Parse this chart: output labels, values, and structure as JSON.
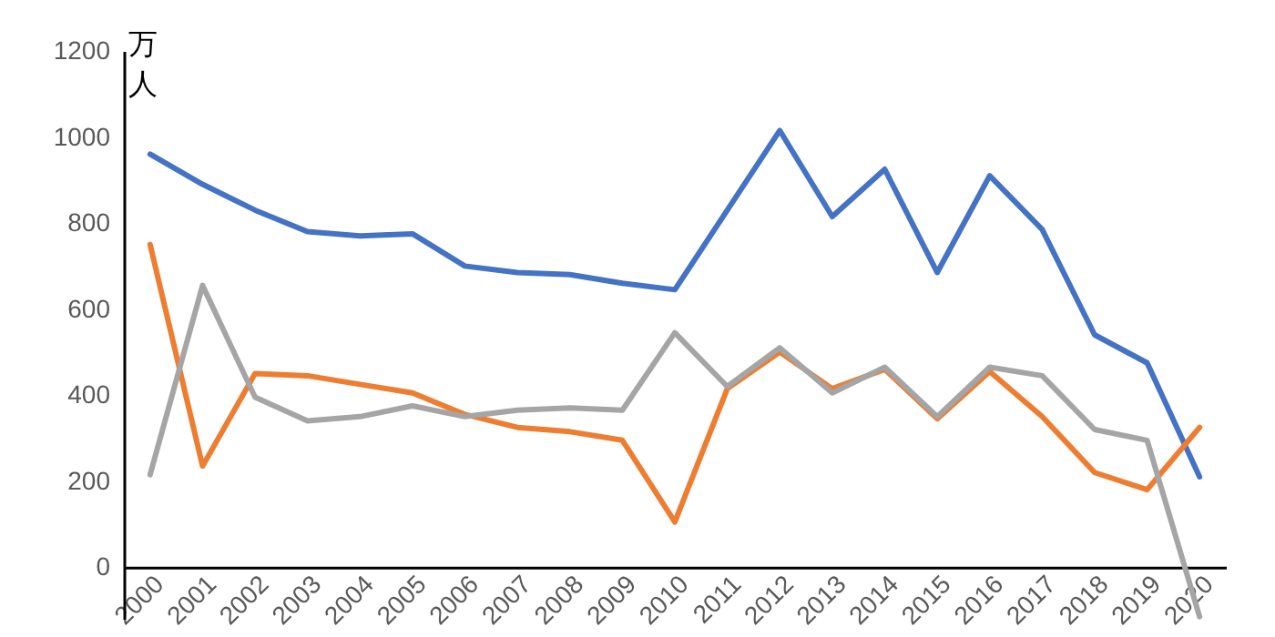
{
  "chart_data": {
    "type": "line",
    "ylabel": "万人",
    "categories": [
      "2000",
      "2001",
      "2002",
      "2003",
      "2004",
      "2005",
      "2006",
      "2007",
      "2008",
      "2009",
      "2010",
      "2011",
      "2012",
      "2013",
      "2014",
      "2015",
      "2016",
      "2017",
      "2018",
      "2019",
      "2020"
    ],
    "series": [
      {
        "color": "#4472c4",
        "values": [
          960,
          890,
          830,
          780,
          770,
          775,
          700,
          685,
          680,
          660,
          645,
          830,
          1015,
          815,
          925,
          685,
          910,
          785,
          540,
          475,
          210
        ]
      },
      {
        "color": "#ed7d31",
        "values": [
          750,
          235,
          450,
          445,
          425,
          405,
          355,
          325,
          315,
          295,
          105,
          415,
          500,
          415,
          460,
          345,
          455,
          350,
          220,
          180,
          325
        ]
      },
      {
        "color": "#a5a5a5",
        "values": [
          215,
          655,
          395,
          340,
          350,
          375,
          350,
          365,
          370,
          365,
          545,
          420,
          510,
          405,
          465,
          350,
          465,
          445,
          320,
          295,
          -115
        ]
      }
    ],
    "ylim": [
      -120,
      1200
    ],
    "yticks": [
      0,
      200,
      400,
      600,
      800,
      1000,
      1200
    ],
    "grid": false,
    "legend": false,
    "marker": "none",
    "line_style": "solid"
  }
}
